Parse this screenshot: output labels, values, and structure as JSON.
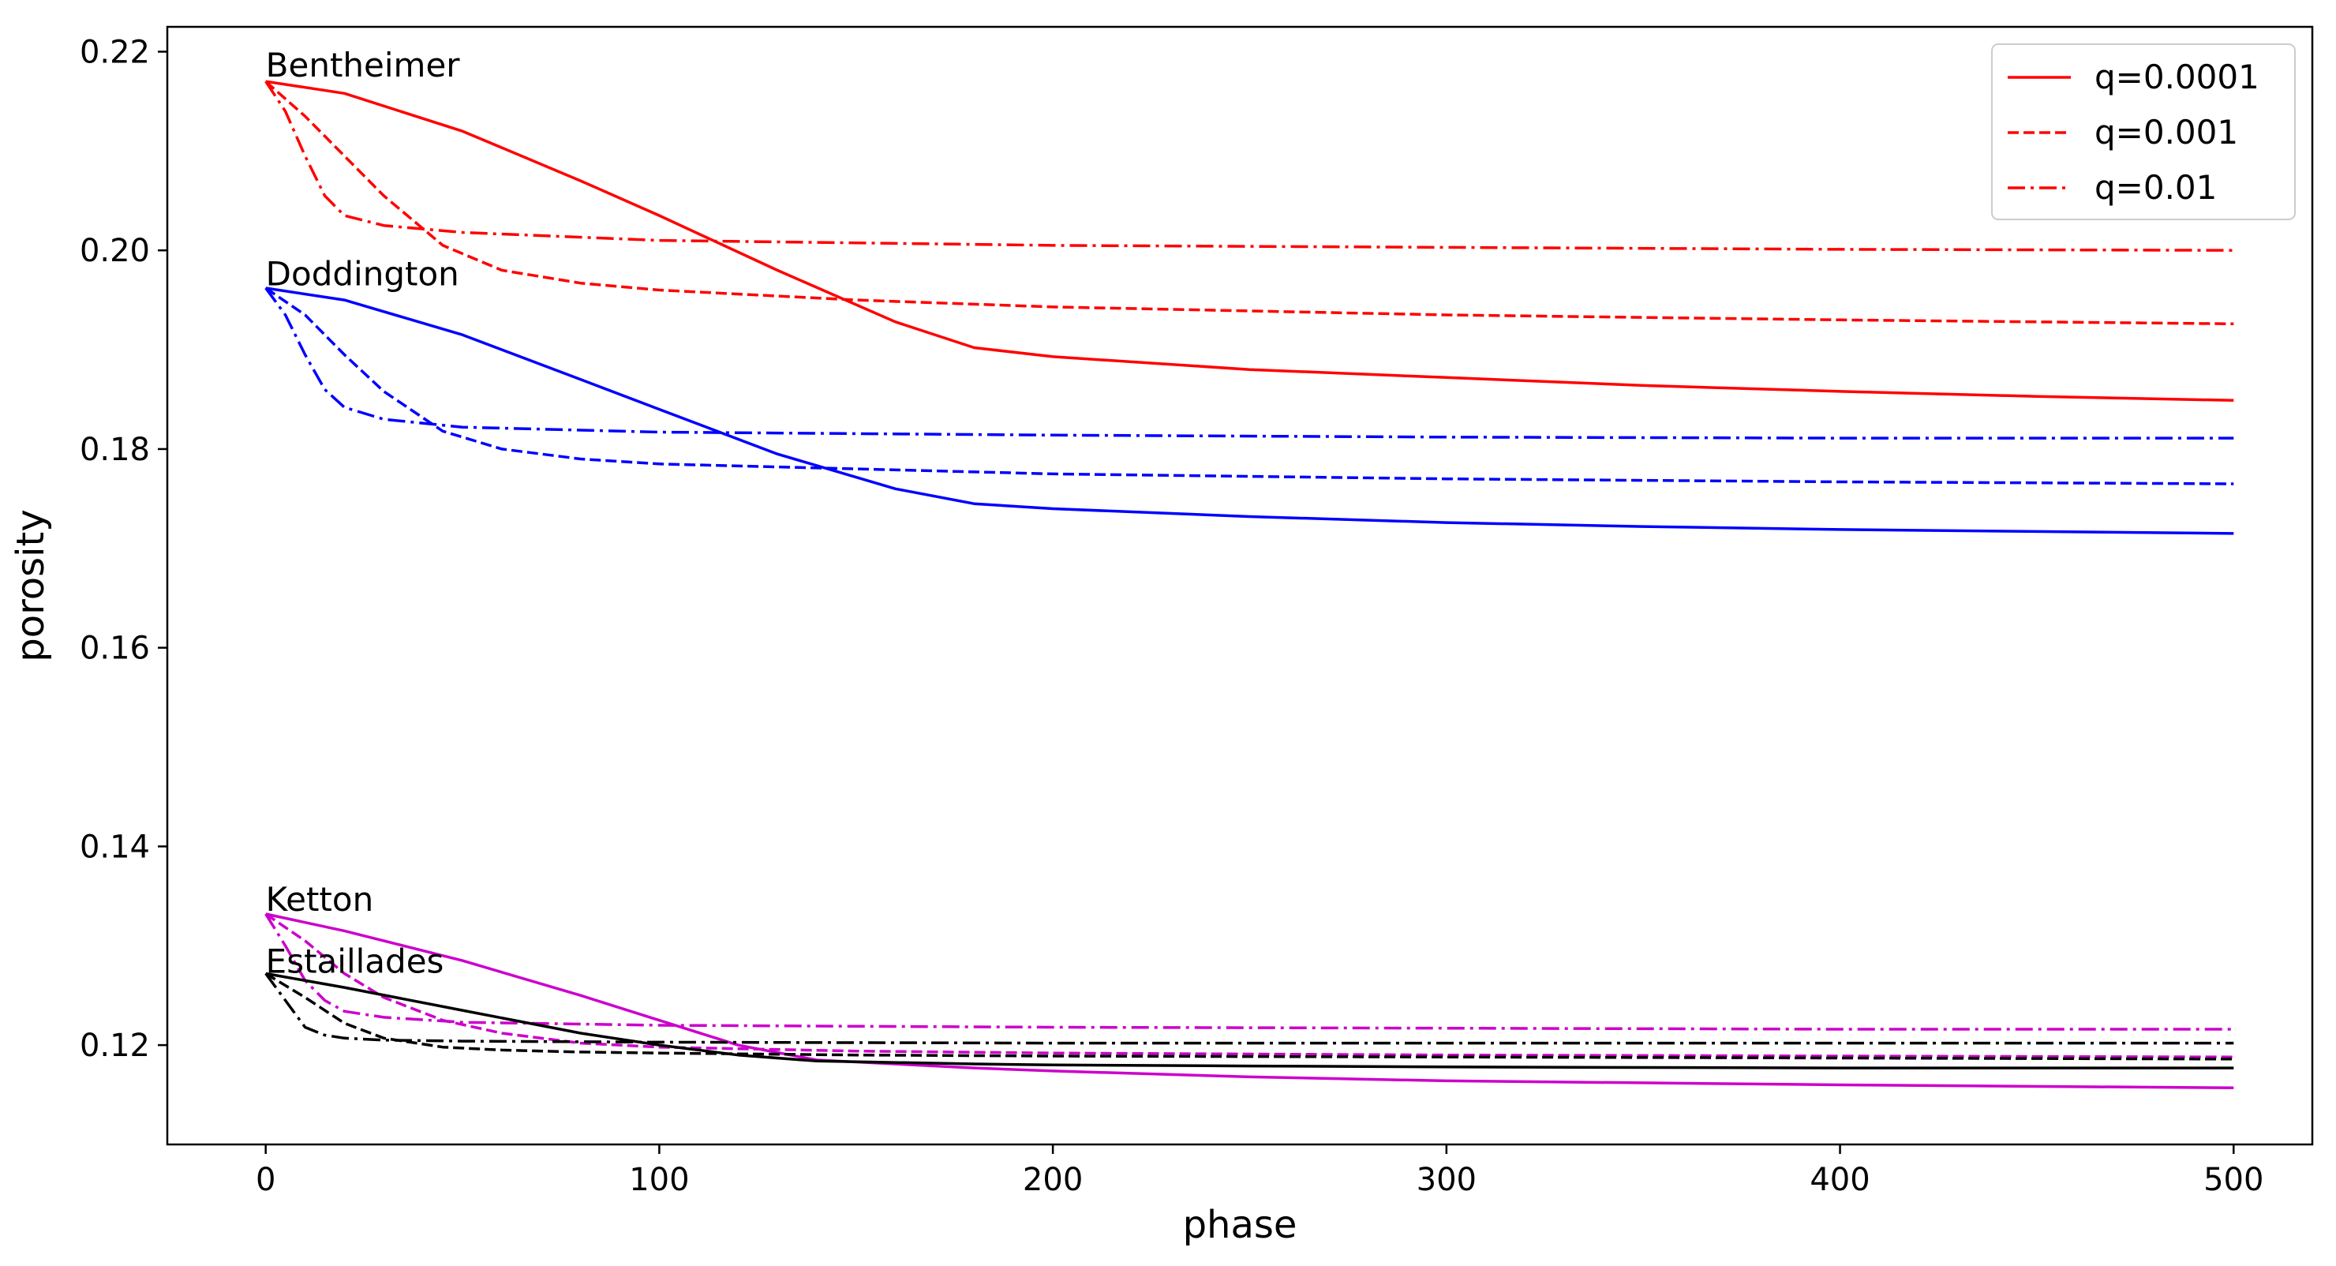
{
  "chart_data": {
    "type": "line",
    "xlabel": "phase",
    "ylabel": "porosity",
    "xlim": [
      -25,
      520
    ],
    "ylim": [
      0.11,
      0.2225
    ],
    "xticks": [
      0,
      100,
      200,
      300,
      400,
      500
    ],
    "yticks": [
      0.12,
      0.14,
      0.16,
      0.18,
      0.2,
      0.22
    ],
    "xtick_labels": [
      "0",
      "100",
      "200",
      "300",
      "400",
      "500"
    ],
    "ytick_labels": [
      "0.12",
      "0.14",
      "0.16",
      "0.18",
      "0.20",
      "0.22"
    ],
    "grid": false,
    "legend": {
      "placement": "top-right",
      "entries": [
        {
          "label": "q=0.0001",
          "dash": "solid",
          "color": "#ff0000"
        },
        {
          "label": "q=0.001",
          "dash": "dashed",
          "color": "#ff0000"
        },
        {
          "label": "q=0.01",
          "dash": "dashdot",
          "color": "#ff0000"
        }
      ]
    },
    "annotations": [
      {
        "text": "Bentheimer",
        "x": 0,
        "y": 0.2175
      },
      {
        "text": "Doddington",
        "x": 0,
        "y": 0.1965
      },
      {
        "text": "Ketton",
        "x": 0,
        "y": 0.1335
      },
      {
        "text": "Estaillades",
        "x": 0,
        "y": 0.1273
      }
    ],
    "series": [
      {
        "rock": "Bentheimer",
        "q": "0.0001",
        "color": "#ff0000",
        "dash": "solid",
        "x": [
          0,
          20,
          50,
          80,
          100,
          130,
          160,
          180,
          200,
          250,
          300,
          350,
          400,
          450,
          500
        ],
        "y": [
          0.217,
          0.2158,
          0.212,
          0.207,
          0.2035,
          0.198,
          0.1928,
          0.1902,
          0.1893,
          0.188,
          0.1872,
          0.1864,
          0.1858,
          0.1853,
          0.1849
        ]
      },
      {
        "rock": "Bentheimer",
        "q": "0.001",
        "color": "#ff0000",
        "dash": "dashed",
        "x": [
          0,
          10,
          20,
          30,
          45,
          60,
          80,
          100,
          150,
          200,
          300,
          400,
          500
        ],
        "y": [
          0.217,
          0.2135,
          0.2095,
          0.2055,
          0.2005,
          0.198,
          0.1967,
          0.196,
          0.195,
          0.1943,
          0.1935,
          0.193,
          0.1926
        ]
      },
      {
        "rock": "Bentheimer",
        "q": "0.01",
        "color": "#ff0000",
        "dash": "dashdot",
        "x": [
          0,
          5,
          10,
          15,
          20,
          30,
          50,
          100,
          200,
          300,
          400,
          500
        ],
        "y": [
          0.217,
          0.214,
          0.2095,
          0.2055,
          0.2035,
          0.2025,
          0.2018,
          0.201,
          0.2005,
          0.2003,
          0.2001,
          0.2
        ]
      },
      {
        "rock": "Doddington",
        "q": "0.0001",
        "color": "#0000ff",
        "dash": "solid",
        "x": [
          0,
          20,
          50,
          80,
          100,
          130,
          160,
          180,
          200,
          250,
          300,
          350,
          400,
          450,
          500
        ],
        "y": [
          0.1962,
          0.195,
          0.1915,
          0.187,
          0.184,
          0.1795,
          0.176,
          0.1745,
          0.174,
          0.1732,
          0.1726,
          0.1722,
          0.1719,
          0.1717,
          0.1715
        ]
      },
      {
        "rock": "Doddington",
        "q": "0.001",
        "color": "#0000ff",
        "dash": "dashed",
        "x": [
          0,
          10,
          20,
          30,
          45,
          60,
          80,
          100,
          150,
          200,
          300,
          400,
          500
        ],
        "y": [
          0.1962,
          0.1935,
          0.1895,
          0.1858,
          0.1818,
          0.18,
          0.179,
          0.1785,
          0.178,
          0.1775,
          0.177,
          0.1767,
          0.1765
        ]
      },
      {
        "rock": "Doddington",
        "q": "0.01",
        "color": "#0000ff",
        "dash": "dashdot",
        "x": [
          0,
          5,
          10,
          15,
          20,
          30,
          50,
          100,
          200,
          300,
          400,
          500
        ],
        "y": [
          0.1962,
          0.1935,
          0.1895,
          0.186,
          0.1842,
          0.183,
          0.1822,
          0.1817,
          0.1814,
          0.1812,
          0.1811,
          0.1811
        ]
      },
      {
        "rock": "Ketton",
        "q": "0.0001",
        "color": "#cc00cc",
        "dash": "solid",
        "x": [
          0,
          20,
          50,
          80,
          100,
          120,
          140,
          180,
          200,
          250,
          300,
          400,
          500
        ],
        "y": [
          0.1332,
          0.1315,
          0.1285,
          0.125,
          0.1225,
          0.12,
          0.1185,
          0.1177,
          0.1174,
          0.1168,
          0.1164,
          0.116,
          0.1157
        ]
      },
      {
        "rock": "Ketton",
        "q": "0.001",
        "color": "#cc00cc",
        "dash": "dashed",
        "x": [
          0,
          10,
          20,
          30,
          45,
          60,
          80,
          100,
          150,
          200,
          300,
          400,
          500
        ],
        "y": [
          0.1332,
          0.1305,
          0.1272,
          0.1248,
          0.1225,
          0.1212,
          0.1202,
          0.1198,
          0.1194,
          0.1192,
          0.119,
          0.1189,
          0.1188
        ]
      },
      {
        "rock": "Ketton",
        "q": "0.01",
        "color": "#cc00cc",
        "dash": "dashdot",
        "x": [
          0,
          5,
          10,
          15,
          20,
          30,
          50,
          100,
          200,
          300,
          400,
          500
        ],
        "y": [
          0.1332,
          0.13,
          0.1265,
          0.1245,
          0.1234,
          0.1228,
          0.1223,
          0.122,
          0.1218,
          0.1217,
          0.1216,
          0.1216
        ]
      },
      {
        "rock": "Estaillades",
        "q": "0.0001",
        "color": "#000000",
        "dash": "solid",
        "x": [
          0,
          20,
          50,
          80,
          100,
          120,
          140,
          180,
          200,
          250,
          300,
          400,
          500
        ],
        "y": [
          0.1272,
          0.1258,
          0.1235,
          0.1212,
          0.12,
          0.119,
          0.1184,
          0.1181,
          0.118,
          0.1179,
          0.1178,
          0.1177,
          0.1177
        ]
      },
      {
        "rock": "Estaillades",
        "q": "0.001",
        "color": "#000000",
        "dash": "dashed",
        "x": [
          0,
          10,
          20,
          30,
          45,
          60,
          80,
          100,
          150,
          200,
          300,
          400,
          500
        ],
        "y": [
          0.1272,
          0.1248,
          0.1222,
          0.1207,
          0.1198,
          0.1195,
          0.1193,
          0.1192,
          0.119,
          0.1189,
          0.1188,
          0.1187,
          0.1186
        ]
      },
      {
        "rock": "Estaillades",
        "q": "0.01",
        "color": "#000000",
        "dash": "dashdot",
        "x": [
          0,
          5,
          10,
          15,
          20,
          30,
          50,
          100,
          200,
          300,
          400,
          500
        ],
        "y": [
          0.1272,
          0.1245,
          0.1218,
          0.121,
          0.1207,
          0.1205,
          0.1204,
          0.1203,
          0.1202,
          0.1202,
          0.1202,
          0.1202
        ]
      }
    ]
  }
}
